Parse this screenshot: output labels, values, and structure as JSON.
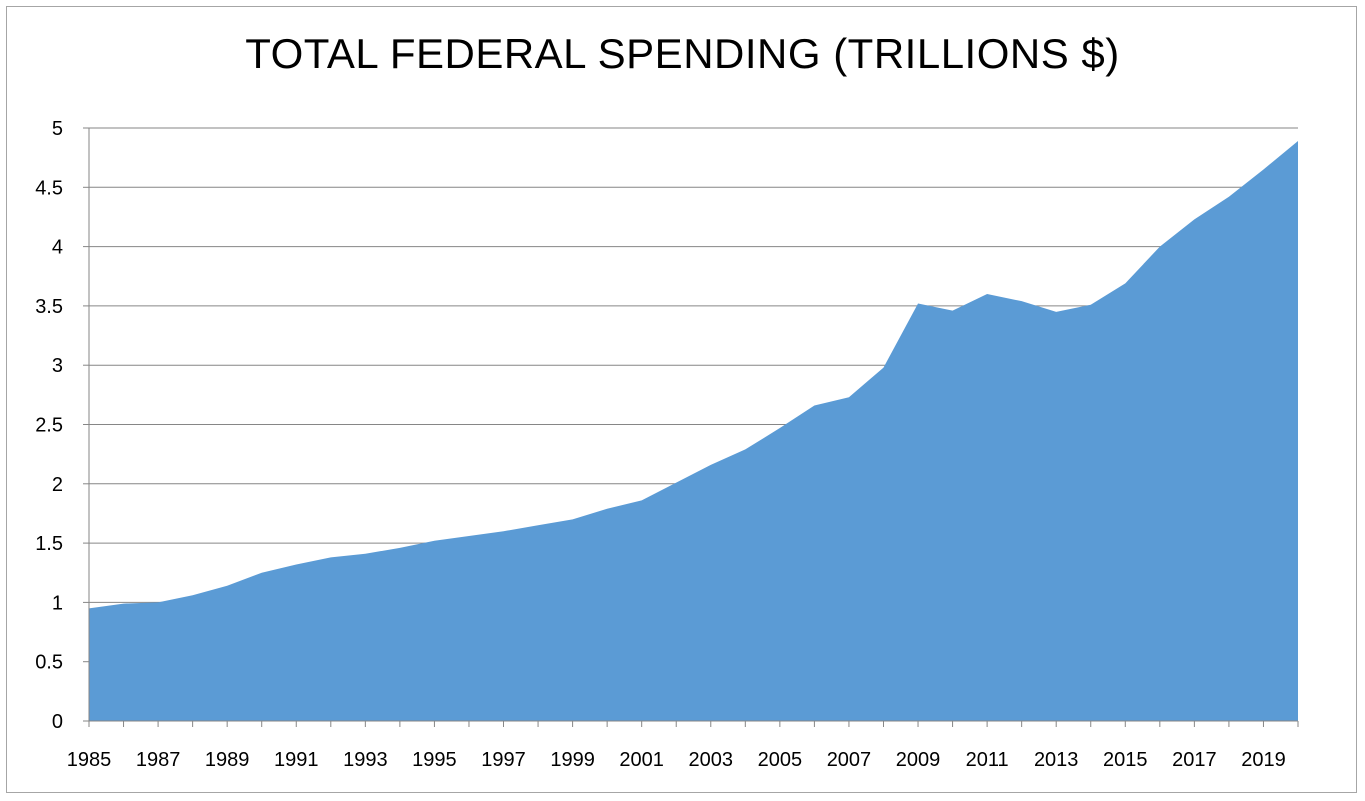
{
  "chart_data": {
    "type": "area",
    "title": "TOTAL FEDERAL SPENDING (TRILLIONS $)",
    "xlabel": "",
    "ylabel": "",
    "x": [
      1985,
      1986,
      1987,
      1988,
      1989,
      1990,
      1991,
      1992,
      1993,
      1994,
      1995,
      1996,
      1997,
      1998,
      1999,
      2000,
      2001,
      2002,
      2003,
      2004,
      2005,
      2006,
      2007,
      2008,
      2009,
      2010,
      2011,
      2012,
      2013,
      2014,
      2015,
      2016,
      2017,
      2018,
      2019,
      2020
    ],
    "series": [
      {
        "name": "",
        "color": "#5b9bd5",
        "values": [
          0.95,
          0.99,
          1.0,
          1.06,
          1.14,
          1.25,
          1.32,
          1.38,
          1.41,
          1.46,
          1.52,
          1.56,
          1.6,
          1.65,
          1.7,
          1.79,
          1.86,
          2.01,
          2.16,
          2.29,
          2.47,
          2.66,
          2.73,
          2.98,
          3.52,
          3.46,
          3.6,
          3.54,
          3.45,
          3.51,
          3.69,
          4.0,
          4.23,
          4.42,
          4.65,
          4.89
        ]
      }
    ],
    "x_tick_labels": [
      "1985",
      "1987",
      "1989",
      "1991",
      "1993",
      "1995",
      "1997",
      "1999",
      "2001",
      "2003",
      "2005",
      "2007",
      "2009",
      "2011",
      "2013",
      "2015",
      "2017",
      "2019"
    ],
    "y_tick_labels": [
      "0",
      "0.5",
      "1",
      "1.5",
      "2",
      "2.5",
      "3",
      "3.5",
      "4",
      "4.5",
      "5"
    ],
    "ylim": [
      0,
      5
    ],
    "xlim": [
      1985,
      2020
    ],
    "grid": true,
    "legend": "none",
    "gridline_color": "#868686",
    "axis_color": "#868686"
  }
}
